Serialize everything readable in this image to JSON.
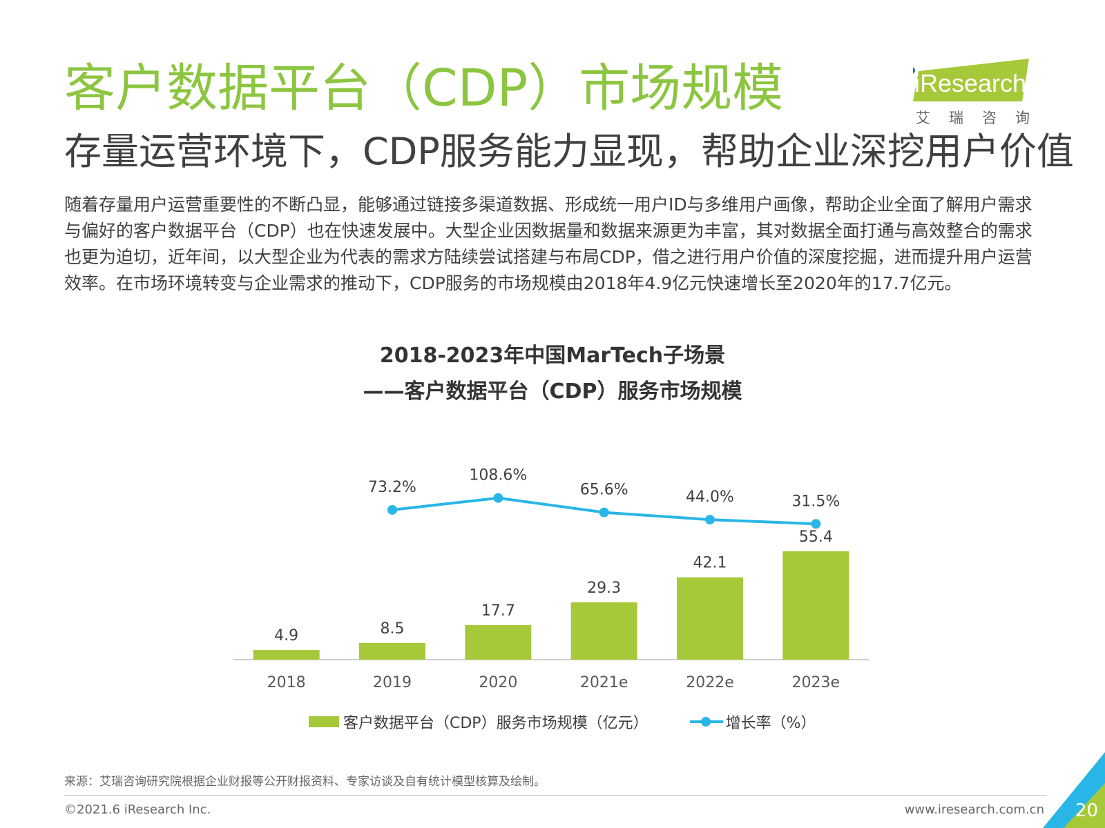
{
  "page": {
    "title": "客户数据平台（CDP）市场规模",
    "subtitle": "存量运营环境下，CDP服务能力显现，帮助企业深挖用户价值",
    "body": "随着存量用户运营重要性的不断凸显，能够通过链接多渠道数据、形成统一用户ID与多维用户画像，帮助企业全面了解用户需求与偏好的客户数据平台（CDP）也在快速发展中。大型企业因数据量和数据来源更为丰富，其对数据全面打通与高效整合的需求也更为迫切，近年间，以大型企业为代表的需求方陆续尝试搭建与布局CDP，借之进行用户价值的深度挖掘，进而提升用户运营效率。在市场环境转变与企业需求的推动下，CDP服务的市场规模由2018年4.9亿元快速增长至2020年的17.7亿元。",
    "source": "来源：艾瑞咨询研究院根据企业财报等公开财报资料、专家访谈及自有统计模型核算及绘制。",
    "copyright": "©2021.6 iResearch Inc.",
    "website": "www.iresearch.com.cn",
    "page_number": "20"
  },
  "logo": {
    "text": "iResearch",
    "cn": "艾瑞咨询"
  },
  "colors": {
    "title_green": "#8cc540",
    "bar_green": "#a5c938",
    "line_blue": "#29b6e6",
    "text_gray": "#404040"
  },
  "chart_data": {
    "type": "bar",
    "title_line1": "2018-2023年中国MarTech子场景",
    "title_line2": "——客户数据平台（CDP）服务市场规模",
    "categories": [
      "2018",
      "2019",
      "2020",
      "2021e",
      "2022e",
      "2023e"
    ],
    "series": [
      {
        "name": "客户数据平台（CDP）服务市场规模（亿元）",
        "type": "bar",
        "values": [
          4.9,
          8.5,
          17.7,
          29.3,
          42.1,
          55.4
        ],
        "labels": [
          "4.9",
          "8.5",
          "17.7",
          "29.3",
          "42.1",
          "55.4"
        ]
      },
      {
        "name": "增长率（%）",
        "type": "line",
        "values": [
          null,
          73.2,
          108.6,
          65.6,
          44.0,
          31.5
        ],
        "labels": [
          "",
          "73.2%",
          "108.6%",
          "65.6%",
          "44.0%",
          "31.5%"
        ]
      }
    ],
    "legend_position": "bottom",
    "grid": false
  }
}
